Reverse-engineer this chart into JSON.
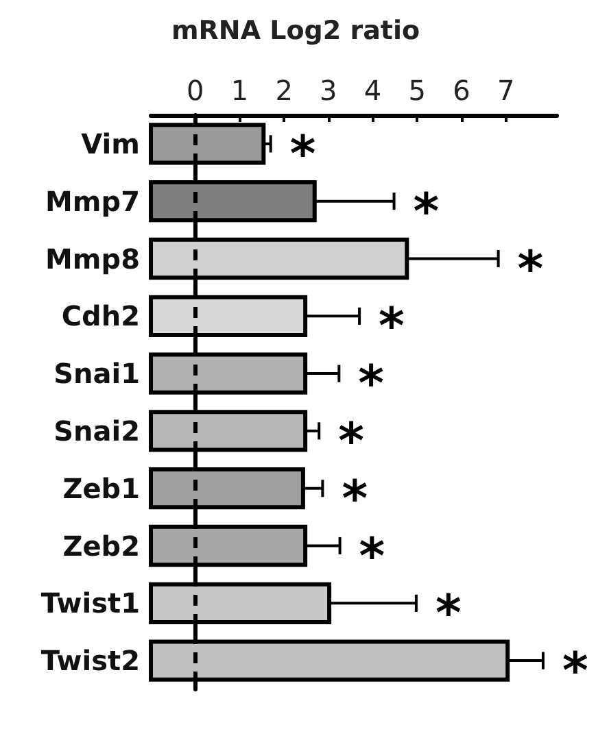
{
  "chart_data": {
    "type": "bar",
    "orientation": "horizontal",
    "xlabel": "mRNA Log2 ratio",
    "categories": [
      "Vim",
      "Mmp7",
      "Mmp8",
      "Cdh2",
      "Snai1",
      "Snai2",
      "Zeb1",
      "Zeb2",
      "Twist1",
      "Twist2"
    ],
    "base": [
      -1,
      -1,
      -1,
      -1,
      -1,
      -1,
      -1,
      -1,
      -1,
      -1
    ],
    "values": [
      2.54,
      3.69,
      5.77,
      3.48,
      3.48,
      3.48,
      3.43,
      3.48,
      4.02,
      8.04
    ],
    "errors": [
      [
        1.54,
        1.7
      ],
      [
        2.69,
        4.48
      ],
      [
        4.77,
        6.83
      ],
      [
        2.48,
        3.7
      ],
      [
        2.48,
        3.24
      ],
      [
        2.48,
        2.79
      ],
      [
        2.43,
        2.87
      ],
      [
        2.48,
        3.26
      ],
      [
        3.02,
        4.98
      ],
      [
        7.04,
        7.84
      ]
    ],
    "colors": [
      "#9a9a9a",
      "#7f7f7f",
      "#d0d0d0",
      "#d8d8d8",
      "#b0b0b0",
      "#b8b8b8",
      "#a0a0a0",
      "#a8a8a8",
      "#c8c8c8",
      "#c0c0c0"
    ],
    "xlim": [
      -1,
      8.15
    ],
    "xticks": [
      0,
      1,
      2,
      3,
      4,
      5,
      6,
      7
    ],
    "ref_lines": [
      {
        "axis": "x",
        "value": 0,
        "line_style": "dashed",
        "color": "#000000"
      }
    ],
    "annotations": [
      "*",
      "*",
      "*",
      "*",
      "*",
      "*",
      "*",
      "*",
      "*",
      "*"
    ],
    "grid": false,
    "legend": false
  }
}
